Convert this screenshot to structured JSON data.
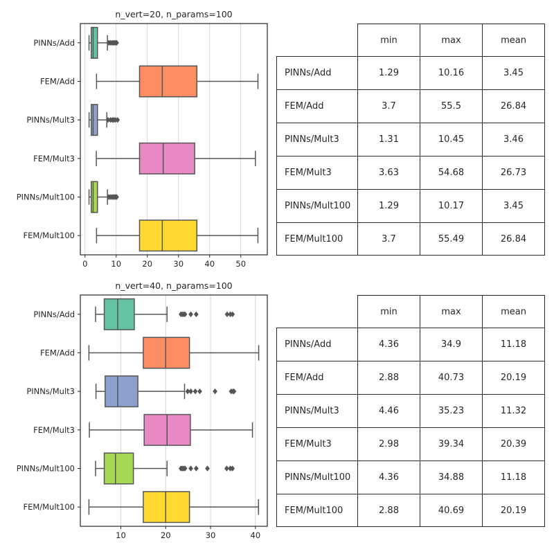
{
  "colors": {
    "Add_pinn": "#66c2a5",
    "Add_fem": "#fc8d62",
    "Mult3_pinn": "#8da0cb",
    "Mult3_fem": "#e78ac3",
    "Mult100_pinn": "#a6d854",
    "Mult100_fem": "#ffd92f",
    "line": "#555555",
    "grid": "#cccccc"
  },
  "chart_data": [
    {
      "type": "box",
      "title": "n_vert=20, n_params=100",
      "xlim": [
        -1.5,
        58.5
      ],
      "xticks": [
        0,
        10,
        20,
        30,
        40,
        50
      ],
      "categories": [
        "PINNs/Add",
        "FEM/Add",
        "PINNs/Mult3",
        "FEM/Mult3",
        "PINNs/Mult100",
        "FEM/Mult100"
      ],
      "grid": "vertical",
      "boxes": [
        {
          "name": "PINNs/Add",
          "whislo": 1.29,
          "q1": 2.0,
          "med": 2.6,
          "q3": 4.0,
          "whishi": 7.2,
          "fliers": [
            7.6,
            8.1,
            8.6,
            9.0,
            9.4,
            9.8,
            10.16
          ]
        },
        {
          "name": "FEM/Add",
          "whislo": 3.7,
          "q1": 17.5,
          "med": 24.8,
          "q3": 35.9,
          "whishi": 55.5,
          "fliers": []
        },
        {
          "name": "PINNs/Mult3",
          "whislo": 1.31,
          "q1": 2.0,
          "med": 2.6,
          "q3": 4.0,
          "whishi": 7.0,
          "fliers": [
            7.4,
            8.2,
            8.8,
            9.2,
            9.7,
            10.45
          ]
        },
        {
          "name": "FEM/Mult3",
          "whislo": 3.63,
          "q1": 17.5,
          "med": 25.1,
          "q3": 35.2,
          "whishi": 54.68,
          "fliers": []
        },
        {
          "name": "PINNs/Mult100",
          "whislo": 1.29,
          "q1": 2.0,
          "med": 2.6,
          "q3": 4.0,
          "whishi": 7.2,
          "fliers": [
            7.6,
            8.1,
            8.6,
            9.0,
            9.4,
            9.8,
            10.17
          ]
        },
        {
          "name": "FEM/Mult100",
          "whislo": 3.7,
          "q1": 17.5,
          "med": 24.8,
          "q3": 35.9,
          "whishi": 55.49,
          "fliers": []
        }
      ]
    },
    {
      "type": "box",
      "title": "n_vert=40, n_params=100",
      "xlim": [
        0.97,
        42.65
      ],
      "xticks": [
        10,
        20,
        30,
        40
      ],
      "categories": [
        "PINNs/Add",
        "FEM/Add",
        "PINNs/Mult3",
        "FEM/Mult3",
        "PINNs/Mult100",
        "FEM/Mult100"
      ],
      "grid": "vertical",
      "boxes": [
        {
          "name": "PINNs/Add",
          "whislo": 4.36,
          "q1": 6.3,
          "med": 9.3,
          "q3": 13.0,
          "whishi": 20.3,
          "fliers": [
            23.4,
            23.7,
            24.0,
            24.3,
            25.6,
            26.8,
            33.7,
            34.4,
            34.9
          ]
        },
        {
          "name": "FEM/Add",
          "whislo": 2.88,
          "q1": 15.0,
          "med": 20.0,
          "q3": 25.3,
          "whishi": 40.73,
          "fliers": []
        },
        {
          "name": "PINNs/Mult3",
          "whislo": 4.46,
          "q1": 6.5,
          "med": 9.3,
          "q3": 13.8,
          "whishi": 24.2,
          "fliers": [
            24.9,
            25.6,
            26.6,
            27.6,
            31.0,
            34.6,
            35.0,
            35.23
          ]
        },
        {
          "name": "FEM/Mult3",
          "whislo": 2.98,
          "q1": 15.2,
          "med": 20.3,
          "q3": 25.5,
          "whishi": 39.34,
          "fliers": []
        },
        {
          "name": "PINNs/Mult100",
          "whislo": 4.36,
          "q1": 6.3,
          "med": 8.8,
          "q3": 12.8,
          "whishi": 20.3,
          "fliers": [
            23.4,
            23.7,
            24.0,
            24.3,
            25.6,
            26.8,
            29.3,
            33.6,
            34.4,
            34.88
          ]
        },
        {
          "name": "FEM/Mult100",
          "whislo": 2.88,
          "q1": 15.0,
          "med": 20.0,
          "q3": 25.3,
          "whishi": 40.69,
          "fliers": []
        }
      ]
    }
  ],
  "tables": [
    {
      "columns": [
        "min",
        "max",
        "mean"
      ],
      "rows": [
        {
          "label": "PINNs/Add",
          "values": [
            "1.29",
            "10.16",
            "3.45"
          ]
        },
        {
          "label": "FEM/Add",
          "values": [
            "3.7",
            "55.5",
            "26.84"
          ]
        },
        {
          "label": "PINNs/Mult3",
          "values": [
            "1.31",
            "10.45",
            "3.46"
          ]
        },
        {
          "label": "FEM/Mult3",
          "values": [
            "3.63",
            "54.68",
            "26.73"
          ]
        },
        {
          "label": "PINNs/Mult100",
          "values": [
            "1.29",
            "10.17",
            "3.45"
          ]
        },
        {
          "label": "FEM/Mult100",
          "values": [
            "3.7",
            "55.49",
            "26.84"
          ]
        }
      ]
    },
    {
      "columns": [
        "min",
        "max",
        "mean"
      ],
      "rows": [
        {
          "label": "PINNs/Add",
          "values": [
            "4.36",
            "34.9",
            "11.18"
          ]
        },
        {
          "label": "FEM/Add",
          "values": [
            "2.88",
            "40.73",
            "20.19"
          ]
        },
        {
          "label": "PINNs/Mult3",
          "values": [
            "4.46",
            "35.23",
            "11.32"
          ]
        },
        {
          "label": "FEM/Mult3",
          "values": [
            "2.98",
            "39.34",
            "20.39"
          ]
        },
        {
          "label": "PINNs/Mult100",
          "values": [
            "4.36",
            "34.88",
            "11.18"
          ]
        },
        {
          "label": "FEM/Mult100",
          "values": [
            "2.88",
            "40.69",
            "20.19"
          ]
        }
      ]
    }
  ]
}
